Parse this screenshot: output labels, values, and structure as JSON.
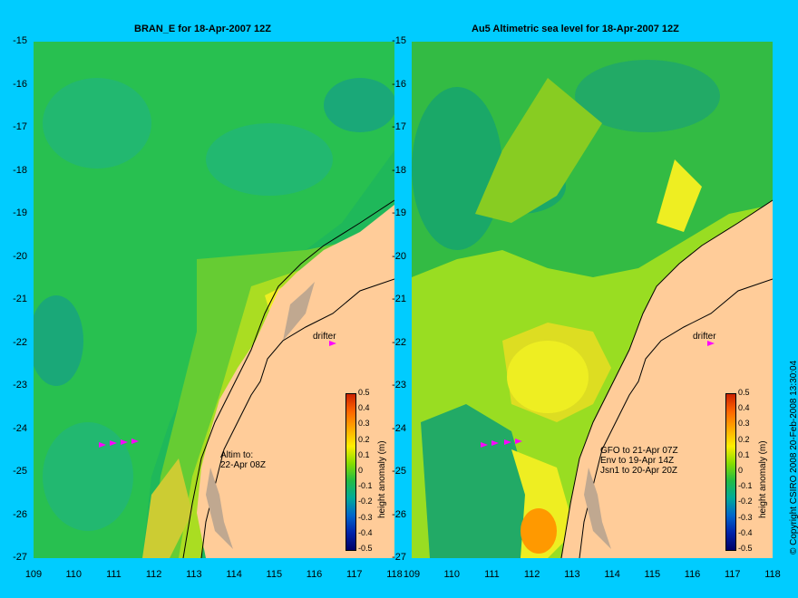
{
  "left_panel": {
    "title": "BRAN_E for 18-Apr-2007 12Z",
    "drifter_label": "drifter",
    "altim_text": "Altim to:\n22-Apr 08Z",
    "colorbar_label": "height anomaly (m)"
  },
  "right_panel": {
    "title": "Au5 Altimetric sea level  for 18-Apr-2007 12Z",
    "drifter_label": "drifter",
    "sat_text": "GFO to 21-Apr 07Z\nEnv to 19-Apr 14Z\nJsn1 to 20-Apr 20Z",
    "colorbar_label": "height anomaly (m)"
  },
  "y_ticks": [
    "-15",
    "-16",
    "-17",
    "-18",
    "-19",
    "-20",
    "-21",
    "-22",
    "-23",
    "-24",
    "-25",
    "-26",
    "-27"
  ],
  "x_ticks": [
    "109",
    "110",
    "111",
    "112",
    "113",
    "114",
    "115",
    "116",
    "117",
    "118"
  ],
  "colorbar_ticks": [
    "0.5",
    "0.4",
    "0.3",
    "0.2",
    "0.1",
    "0",
    "-0.1",
    "-0.2",
    "-0.3",
    "-0.4",
    "-0.5"
  ],
  "copyright": "© Copyright CSIRO 2008   20-Feb-2008 13:30:04",
  "colors": {
    "background": "#00ccff",
    "land": "#ffcc99",
    "drifter": "#ff00ff",
    "coast": "#000000"
  }
}
